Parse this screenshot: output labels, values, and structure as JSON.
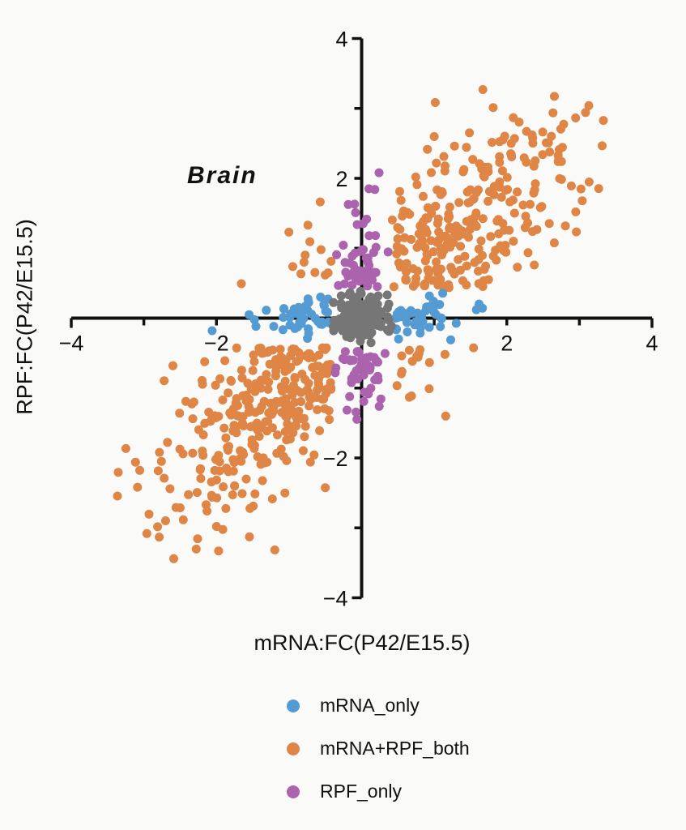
{
  "chart_data": {
    "type": "scatter",
    "title": "Brain",
    "x_axis": {
      "label": "mRNA:FC(P42/E15.5)",
      "min": -4,
      "max": 4,
      "ticks": [
        {
          "value": -4,
          "label": "−4"
        },
        {
          "value": -3,
          "label": ""
        },
        {
          "value": -2,
          "label": "−2"
        },
        {
          "value": -1,
          "label": ""
        },
        {
          "value": 1,
          "label": ""
        },
        {
          "value": 2,
          "label": "2"
        },
        {
          "value": 3,
          "label": ""
        },
        {
          "value": 4,
          "label": "4"
        }
      ]
    },
    "y_axis": {
      "label": "RPF:FC(P42/E15.5)",
      "min": -4,
      "max": 4,
      "ticks": [
        {
          "value": -4,
          "label": "−4"
        },
        {
          "value": -3,
          "label": ""
        },
        {
          "value": -2,
          "label": "−2"
        },
        {
          "value": -1,
          "label": ""
        },
        {
          "value": 1,
          "label": ""
        },
        {
          "value": 2,
          "label": "2"
        },
        {
          "value": 3,
          "label": ""
        },
        {
          "value": 4,
          "label": "4"
        }
      ]
    },
    "colors": {
      "background": "#FAFAF9",
      "axis": "#111111",
      "text": "#111111"
    },
    "marker_diameter_px": 11,
    "legend_position": "bottom",
    "grid": false,
    "series": [
      {
        "name": "mRNA_only",
        "in_legend": true,
        "color": "#549BD3",
        "n": 92,
        "z": 1,
        "seed": 11,
        "dist": {
          "kind": "axis_band",
          "axis": "x",
          "offset": 0.45,
          "sigma": 0.45,
          "max": 1.75,
          "cross_sigma": 0.16,
          "cross_max": 0.4,
          "neg_fraction": 0.56
        },
        "extra_points": [
          [
            -2.06,
            -0.18
          ],
          [
            1.58,
            0.12
          ],
          [
            -1.55,
            0.05
          ]
        ]
      },
      {
        "name": "mRNA+RPF_both",
        "in_legend": true,
        "color": "#DF8546",
        "n": 615,
        "z": 0,
        "seed": 7,
        "dist": {
          "kind": "diagonal",
          "t_sigma": 1.35,
          "noise_sigma": 0.55,
          "min_abs": 0.42,
          "max_abs_x": 3.4,
          "max_y": 3.3,
          "min_y": -3.5
        },
        "extra_points": [
          [
            3.13,
            3.04
          ],
          [
            1.67,
            3.27
          ],
          [
            -1.97,
            -3.33
          ],
          [
            -2.0,
            -2.98
          ],
          [
            -2.72,
            -2.29
          ],
          [
            -2.64,
            -2.44
          ],
          [
            2.95,
            1.52
          ],
          [
            -2.6,
            -0.68
          ],
          [
            -0.74,
            1.33
          ],
          [
            0.93,
            -1.01
          ]
        ]
      },
      {
        "name": "RPF_only",
        "in_legend": true,
        "color": "#AB63AE",
        "n": 98,
        "z": 2,
        "seed": 13,
        "dist": {
          "kind": "axis_band",
          "axis": "y",
          "offset": 0.45,
          "sigma": 0.48,
          "max": 2.0,
          "cross_sigma": 0.16,
          "cross_max": 0.45,
          "neg_fraction": 0.45
        },
        "extra_points": [
          [
            0.24,
            2.08
          ],
          [
            0.1,
            1.85
          ]
        ]
      },
      {
        "name": "unlabeled_center",
        "in_legend": false,
        "color": "#767676",
        "n": 165,
        "z": 3,
        "seed": 17,
        "dist": {
          "kind": "center_blob",
          "x_sigma": 0.2,
          "x_max": 0.43,
          "y_sigma": 0.18,
          "y_max": 0.4
        },
        "extra_points": []
      }
    ]
  }
}
